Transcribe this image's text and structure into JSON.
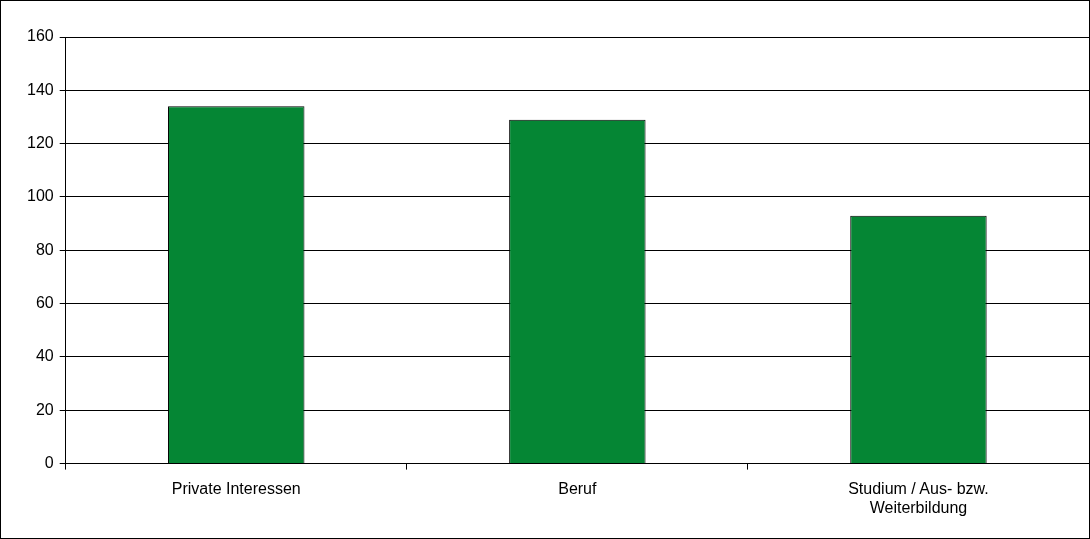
{
  "chart_data": {
    "type": "bar",
    "categories": [
      "Private Interessen",
      "Beruf",
      "Studium / Aus- bzw. Weiterbildung"
    ],
    "values": [
      134,
      129,
      93
    ],
    "color": "#058634",
    "ylim": [
      0,
      160
    ],
    "yticks": [
      0,
      20,
      40,
      60,
      80,
      100,
      120,
      140,
      160
    ],
    "grid": "y"
  }
}
